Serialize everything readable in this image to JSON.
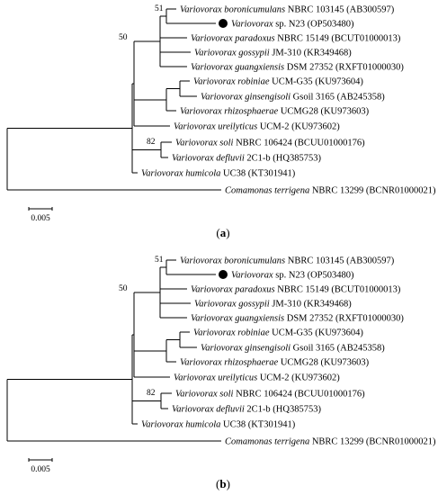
{
  "panels": [
    {
      "caption_prefix": "(",
      "caption_letter": "a",
      "caption_suffix": ")",
      "scale_label": "0.005",
      "bootstrap": [
        "51",
        "50",
        "82"
      ],
      "taxa": [
        {
          "species": "Variovorax boronicumulans",
          "strain": " NBRC 103145 (AB300597)"
        },
        {
          "species": "Variovorax",
          "strain": " sp. N23 (OP503480)"
        },
        {
          "species": "Variovorax paradoxus",
          "strain": " NBRC 15149 (BCUT01000013)"
        },
        {
          "species": "Variovorax gossypii",
          "strain": " JM-310 (KR349468)"
        },
        {
          "species": "Variovorax guangxiensis",
          "strain": " DSM 27352 (RXFT01000030)"
        },
        {
          "species": "Variovorax robiniae",
          "strain": " UCM-G35 (KU973604)"
        },
        {
          "species": "Variovorax ginsengisoli",
          "strain": " Gsoil 3165 (AB245358)"
        },
        {
          "species": "Variovorax rhizosphaerae",
          "strain": " UCMG28 (KU973603)"
        },
        {
          "species": "Variovorax ureilyticus",
          "strain": " UCM-2 (KU973602)"
        },
        {
          "species": "Variovorax soli",
          "strain": " NBRC 106424 (BCUU01000176)"
        },
        {
          "species": "Variovorax defluvii",
          "strain": " 2C1-b (HQ385753)"
        },
        {
          "species": "Variovorax humicola",
          "strain": " UC38 (KT301941)"
        },
        {
          "species": "Comamonas terrigena",
          "strain": " NBRC 13299 (BCNR01000021)"
        }
      ]
    },
    {
      "caption_prefix": "(",
      "caption_letter": "b",
      "caption_suffix": ")",
      "scale_label": "0.005",
      "bootstrap": [
        "51",
        "50",
        "82"
      ],
      "taxa": [
        {
          "species": "Variovorax boronicumulans",
          "strain": " NBRC 103145 (AB300597)"
        },
        {
          "species": "Variovorax",
          "strain": " sp. N23 (OP503480)"
        },
        {
          "species": "Variovorax paradoxus",
          "strain": " NBRC 15149 (BCUT01000013)"
        },
        {
          "species": "Variovorax gossypii",
          "strain": " JM-310 (KR349468)"
        },
        {
          "species": "Variovorax guangxiensis",
          "strain": " DSM 27352 (RXFT01000030)"
        },
        {
          "species": "Variovorax robiniae",
          "strain": " UCM-G35 (KU973604)"
        },
        {
          "species": "Variovorax ginsengisoli",
          "strain": " Gsoil 3165 (AB245358)"
        },
        {
          "species": "Variovorax rhizosphaerae",
          "strain": " UCMG28 (KU973603)"
        },
        {
          "species": "Variovorax ureilyticus",
          "strain": " UCM-2 (KU973602)"
        },
        {
          "species": "Variovorax soli",
          "strain": " NBRC 106424 (BCUU01000176)"
        },
        {
          "species": "Variovorax defluvii",
          "strain": " 2C1-b (HQ385753)"
        },
        {
          "species": "Variovorax humicola",
          "strain": " UC38 (KT301941)"
        },
        {
          "species": "Comamonas terrigena",
          "strain": " NBRC 13299 (BCNR01000021)"
        }
      ]
    }
  ]
}
